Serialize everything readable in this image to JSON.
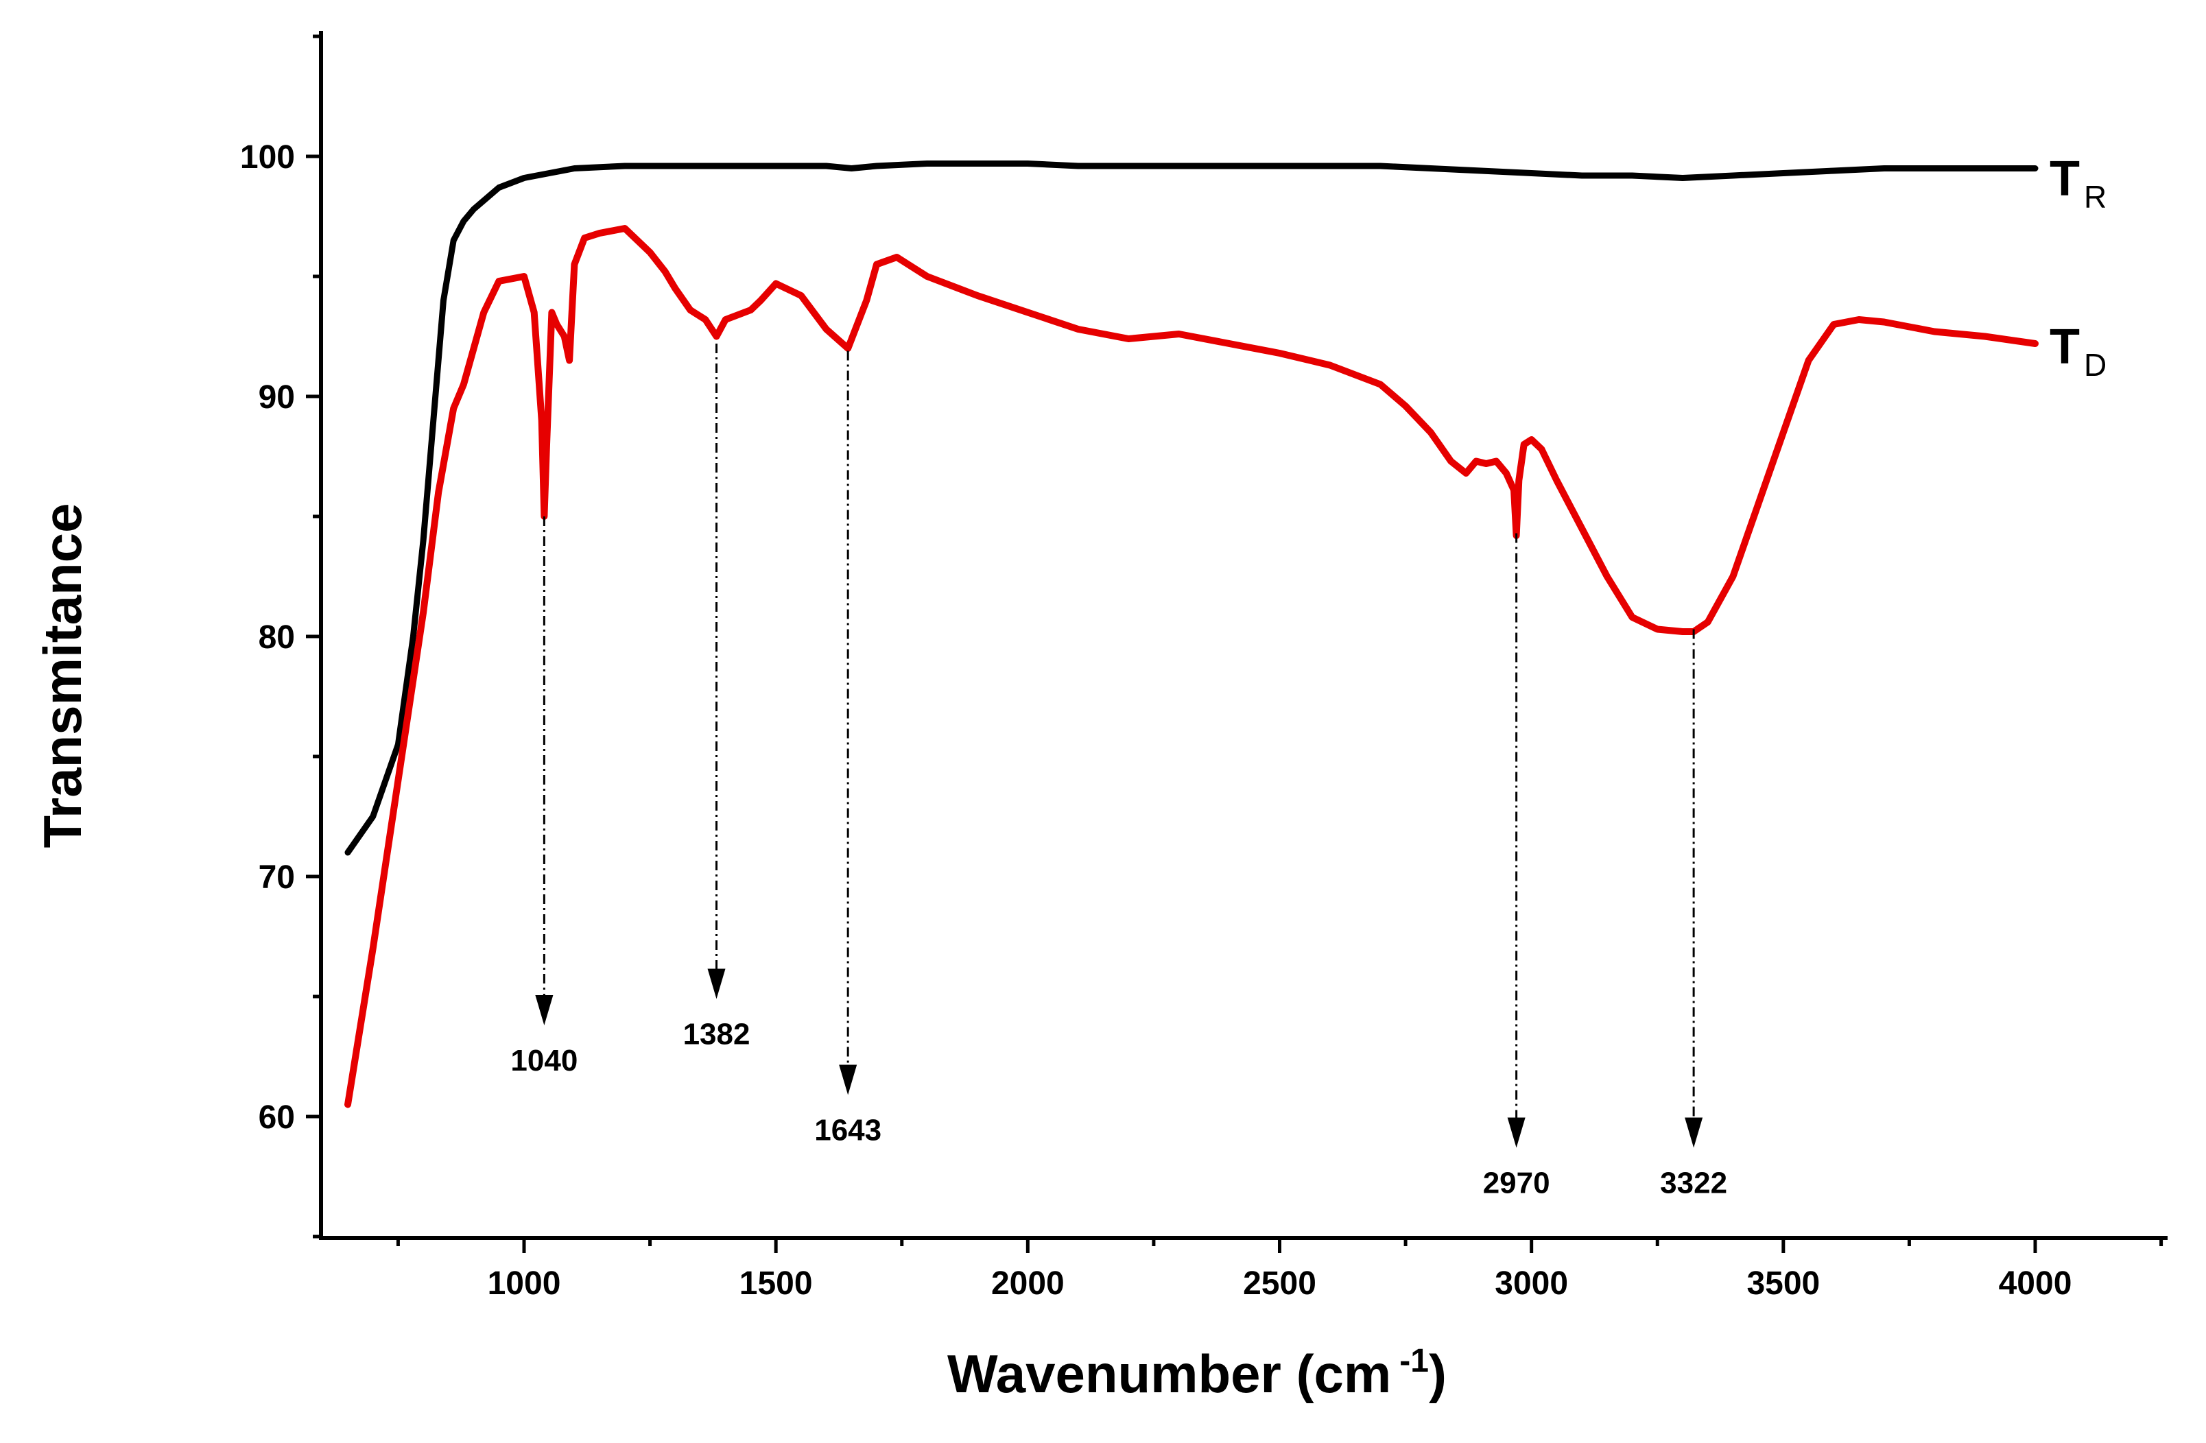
{
  "chart_data": {
    "type": "line",
    "title": "",
    "xlabel": "Wavenumber (cm",
    "xlabel_exp": "-1",
    "xlabel_close": ")",
    "ylabel": "Transmitance",
    "xlim": [
      650,
      4260
    ],
    "ylim": [
      55,
      105
    ],
    "x_ticks": [
      1000,
      1500,
      2000,
      2500,
      3000,
      3500,
      4000
    ],
    "x_minor_step": 250,
    "y_ticks": [
      60,
      70,
      80,
      90,
      100
    ],
    "y_minor_step": 5,
    "grid": false,
    "series": [
      {
        "name": "TR",
        "label_main": "T",
        "label_sub": "R",
        "color": "#000000",
        "x": [
          650,
          700,
          750,
          780,
          800,
          820,
          840,
          860,
          880,
          900,
          950,
          1000,
          1050,
          1100,
          1200,
          1300,
          1400,
          1500,
          1600,
          1650,
          1700,
          1800,
          1900,
          2000,
          2100,
          2200,
          2300,
          2400,
          2500,
          2600,
          2700,
          2800,
          2900,
          3000,
          3100,
          3200,
          3300,
          3400,
          3500,
          3600,
          3700,
          3800,
          3900,
          4000
        ],
        "y": [
          71,
          72.5,
          75.5,
          80,
          84,
          89,
          94,
          96.5,
          97.3,
          97.8,
          98.7,
          99.1,
          99.3,
          99.5,
          99.6,
          99.6,
          99.6,
          99.6,
          99.6,
          99.5,
          99.6,
          99.7,
          99.7,
          99.7,
          99.6,
          99.6,
          99.6,
          99.6,
          99.6,
          99.6,
          99.6,
          99.5,
          99.4,
          99.3,
          99.2,
          99.2,
          99.1,
          99.2,
          99.3,
          99.4,
          99.5,
          99.5,
          99.5,
          99.5
        ]
      },
      {
        "name": "TD",
        "label_main": "T",
        "label_sub": "D",
        "color": "#e60000",
        "x": [
          650,
          700,
          750,
          800,
          830,
          860,
          880,
          900,
          920,
          950,
          1000,
          1020,
          1035,
          1040,
          1045,
          1055,
          1065,
          1080,
          1090,
          1100,
          1120,
          1150,
          1200,
          1250,
          1280,
          1300,
          1330,
          1360,
          1382,
          1400,
          1450,
          1470,
          1500,
          1550,
          1600,
          1643,
          1680,
          1700,
          1740,
          1800,
          1900,
          2000,
          2100,
          2200,
          2300,
          2400,
          2500,
          2600,
          2700,
          2750,
          2800,
          2840,
          2870,
          2890,
          2910,
          2930,
          2950,
          2965,
          2970,
          2975,
          2985,
          3000,
          3020,
          3050,
          3100,
          3150,
          3200,
          3250,
          3300,
          3322,
          3350,
          3400,
          3450,
          3500,
          3550,
          3600,
          3650,
          3700,
          3750,
          3800,
          3900,
          4000
        ],
        "y": [
          60.5,
          67,
          74,
          81,
          86,
          89.5,
          90.5,
          92,
          93.5,
          94.8,
          95,
          93.5,
          89,
          85,
          88,
          93.5,
          93,
          92.5,
          91.5,
          95.5,
          96.6,
          96.8,
          97,
          96,
          95.2,
          94.5,
          93.6,
          93.2,
          92.5,
          93.2,
          93.6,
          94,
          94.7,
          94.2,
          92.8,
          92,
          94,
          95.5,
          95.8,
          95,
          94.2,
          93.5,
          92.8,
          92.4,
          92.6,
          92.2,
          91.8,
          91.3,
          90.5,
          89.6,
          88.5,
          87.3,
          86.8,
          87.3,
          87.2,
          87.3,
          86.8,
          86.1,
          84.2,
          86.5,
          88,
          88.2,
          87.8,
          86.5,
          84.5,
          82.5,
          80.8,
          80.3,
          80.2,
          80.2,
          80.6,
          82.5,
          85.5,
          88.5,
          91.5,
          93,
          93.2,
          93.1,
          92.9,
          92.7,
          92.5,
          92.2
        ]
      }
    ],
    "annotations": [
      {
        "label": "1040",
        "x": 1040,
        "y_start": 85.0,
        "y_end": 63.8
      },
      {
        "label": "1382",
        "x": 1382,
        "y_start": 92.2,
        "y_end": 64.9
      },
      {
        "label": "1643",
        "x": 1643,
        "y_start": 91.9,
        "y_end": 60.9
      },
      {
        "label": "2970",
        "x": 2970,
        "y_start": 84.3,
        "y_end": 58.7
      },
      {
        "label": "3322",
        "x": 3322,
        "y_start": 80.3,
        "y_end": 58.7
      }
    ]
  }
}
